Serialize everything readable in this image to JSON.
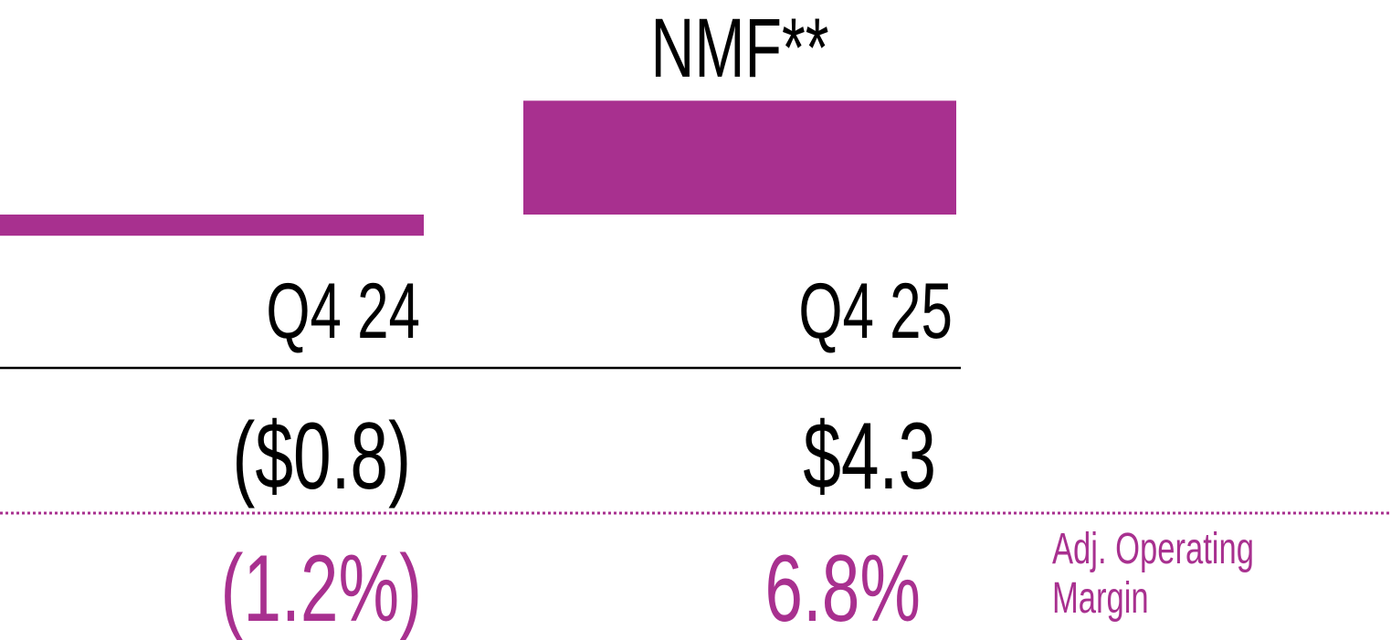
{
  "chart_data": {
    "type": "bar",
    "categories": [
      "Q4 24",
      "Q4 25"
    ],
    "values": [
      -0.8,
      4.3
    ],
    "value_labels": [
      "($0.8)",
      "$4.3"
    ],
    "color": "#a8308f",
    "annotation": "NMF**",
    "margin": {
      "label": "Adj. Operating Margin",
      "values": [
        -1.2,
        6.8
      ],
      "value_labels": [
        "(1.2%)",
        "6.8%"
      ],
      "color": "#a8308f"
    }
  }
}
